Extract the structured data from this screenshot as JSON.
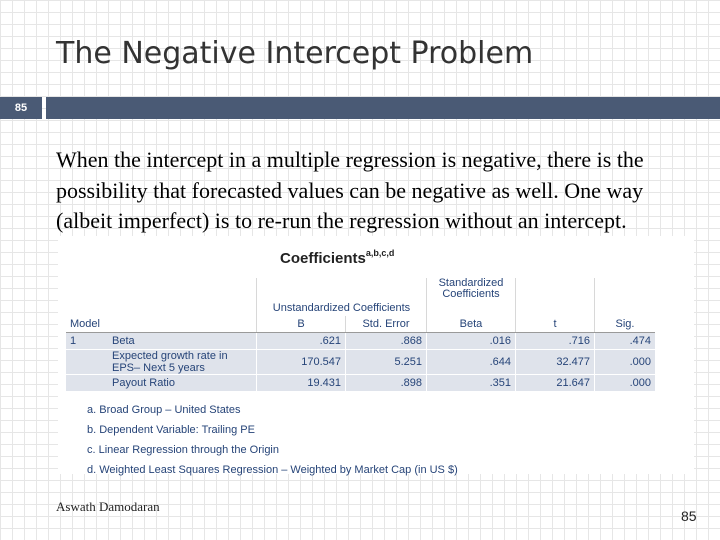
{
  "slide": {
    "title": "The Negative Intercept Problem",
    "slide_number_box": "85",
    "body_text": "When the intercept in a multiple regression is negative, there is the possibility that forecasted values can be negative as well. One way (albeit imperfect) is to re-run the regression without an intercept.",
    "footer_author": "Aswath Damodaran",
    "footer_page": "85"
  },
  "coefficients": {
    "title": "Coefficients",
    "title_superscript": "a,b,c,d",
    "header_unstandardized": "Unstandardized Coefficients",
    "header_standardized": "Standardized Coefficients",
    "col_model": "Model",
    "col_b": "B",
    "col_std_error": "Std. Error",
    "col_beta": "Beta",
    "col_t": "t",
    "col_sig": "Sig.",
    "model_number": "1",
    "rows": [
      {
        "label": "Beta",
        "b": ".621",
        "std_error": ".868",
        "beta": ".016",
        "t": ".716",
        "sig": ".474"
      },
      {
        "label": "Expected growth rate in EPS– Next 5 years",
        "b": "170.547",
        "std_error": "5.251",
        "beta": ".644",
        "t": "32.477",
        "sig": ".000"
      },
      {
        "label": "Payout Ratio",
        "b": "19.431",
        "std_error": ".898",
        "beta": ".351",
        "t": "21.647",
        "sig": ".000"
      }
    ],
    "footnotes": [
      "a. Broad Group – United States",
      "b. Dependent Variable: Trailing PE",
      "c. Linear Regression through the Origin",
      "d. Weighted Least Squares Regression – Weighted by Market Cap (in US $)"
    ]
  }
}
